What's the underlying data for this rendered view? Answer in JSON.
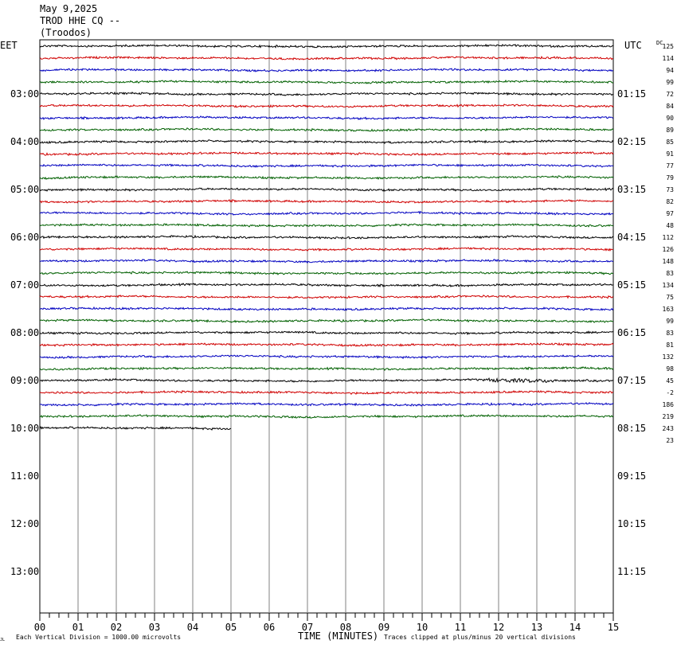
{
  "header": {
    "date": "May 9,2025",
    "station": "TROD HHE CQ --",
    "location": "(Troodos)"
  },
  "labels": {
    "left_timezone": "EET",
    "right_timezone": "UTC",
    "dc_header": "DC",
    "x_axis_title": "TIME (MINUTES)",
    "vertical_division_note": "Each Vertical Division = 1000.00 microvolts",
    "clip_note": "Traces clipped at plus/minus 20 vertical divisions",
    "corner_mark": "JL"
  },
  "colors": {
    "trace_cycle": [
      "#000000",
      "#d00000",
      "#0000c0",
      "#006000"
    ],
    "grid": "#808080",
    "frame": "#000000"
  },
  "chart_data": {
    "type": "line",
    "description_kind": "helicorder seismogram",
    "x": {
      "label": "TIME (MINUTES)",
      "range": [
        0,
        15
      ],
      "tick_labels": [
        "00",
        "01",
        "02",
        "03",
        "04",
        "05",
        "06",
        "07",
        "08",
        "09",
        "10",
        "11",
        "12",
        "13",
        "14",
        "15"
      ]
    },
    "hour_labels_left": [
      "03:00",
      "04:00",
      "05:00",
      "06:00",
      "07:00",
      "08:00",
      "09:00",
      "10:00",
      "11:00",
      "12:00",
      "13:00"
    ],
    "hour_labels_right": [
      "01:15",
      "02:15",
      "03:15",
      "04:15",
      "05:15",
      "06:15",
      "07:15",
      "08:15",
      "09:15",
      "10:15",
      "11:15"
    ],
    "traces_per_hour": 4,
    "rows_total": 47,
    "trace_count": 33,
    "dc_offsets": [
      125,
      114,
      94,
      99,
      72,
      84,
      90,
      89,
      85,
      91,
      77,
      79,
      73,
      82,
      97,
      48,
      112,
      126,
      148,
      83,
      134,
      75,
      163,
      99,
      83,
      81,
      132,
      98,
      45,
      -2,
      186,
      219,
      243,
      23
    ],
    "last_trace_end_minute": 5,
    "clip_limit_divisions": 20
  }
}
